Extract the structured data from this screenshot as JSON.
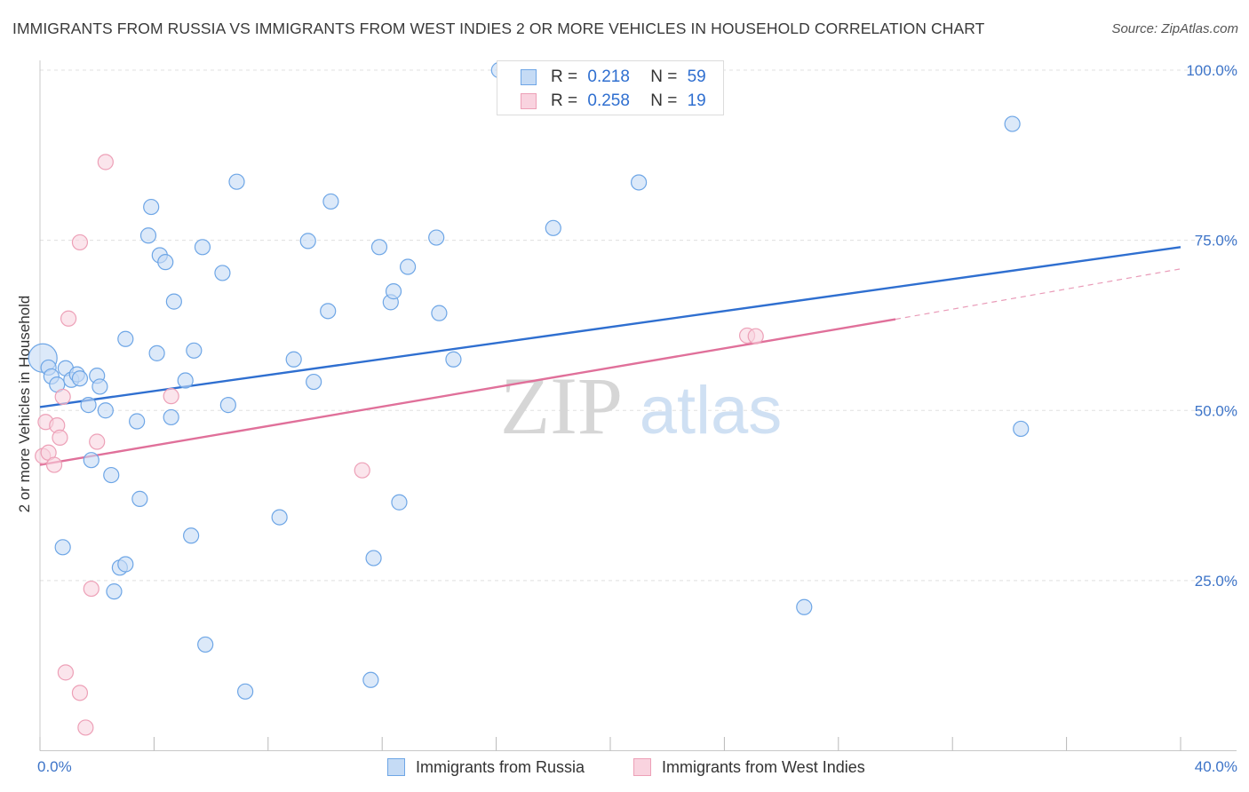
{
  "chart_data": {
    "type": "scatter",
    "title": "IMMIGRANTS FROM RUSSIA VS IMMIGRANTS FROM WEST INDIES 2 OR MORE VEHICLES IN HOUSEHOLD CORRELATION CHART",
    "source": "Source: ZipAtlas.com",
    "xlabel": "",
    "ylabel": "2 or more Vehicles in Household",
    "xlim": [
      0,
      40
    ],
    "ylim": [
      0,
      102
    ],
    "x_tick_labels": [
      "0.0%",
      "40.0%"
    ],
    "y_tick_labels": [
      "100.0%",
      "75.0%",
      "50.0%",
      "25.0%"
    ],
    "y_ticks": [
      100,
      75,
      50,
      25
    ],
    "watermark": {
      "zip": "ZIP",
      "atlas": "atlas"
    },
    "legend": [
      {
        "r_label": "R =",
        "r_value": "0.218",
        "n_label": "N =",
        "n_value": "59"
      },
      {
        "r_label": "R =",
        "r_value": "0.258",
        "n_label": "N =",
        "n_value": "19"
      }
    ],
    "series": [
      {
        "name": "Immigrants from Russia",
        "color": "#6ea6e6",
        "fill": "#c5dbf5",
        "line_color": "#2f6fd0",
        "trend": {
          "x": [
            0,
            40
          ],
          "y": [
            50.5,
            74
          ]
        },
        "points": [
          {
            "x": 0.1,
            "y": 57.7,
            "big": true
          },
          {
            "x": 0.3,
            "y": 56.3
          },
          {
            "x": 0.4,
            "y": 55.0
          },
          {
            "x": 0.6,
            "y": 53.8
          },
          {
            "x": 0.9,
            "y": 56.2
          },
          {
            "x": 1.1,
            "y": 54.5
          },
          {
            "x": 1.3,
            "y": 55.3
          },
          {
            "x": 1.4,
            "y": 54.7
          },
          {
            "x": 1.7,
            "y": 50.8
          },
          {
            "x": 2.0,
            "y": 55.1
          },
          {
            "x": 2.1,
            "y": 53.5
          },
          {
            "x": 2.3,
            "y": 50.0
          },
          {
            "x": 0.8,
            "y": 29.9
          },
          {
            "x": 1.8,
            "y": 42.7
          },
          {
            "x": 2.5,
            "y": 40.5
          },
          {
            "x": 2.6,
            "y": 23.4
          },
          {
            "x": 2.8,
            "y": 26.9
          },
          {
            "x": 3.0,
            "y": 27.4
          },
          {
            "x": 3.0,
            "y": 60.5
          },
          {
            "x": 3.4,
            "y": 48.4
          },
          {
            "x": 3.5,
            "y": 37.0
          },
          {
            "x": 3.8,
            "y": 75.7
          },
          {
            "x": 3.9,
            "y": 79.9
          },
          {
            "x": 4.1,
            "y": 58.4
          },
          {
            "x": 4.2,
            "y": 72.8
          },
          {
            "x": 4.4,
            "y": 71.8
          },
          {
            "x": 4.6,
            "y": 49.0
          },
          {
            "x": 4.7,
            "y": 66.0
          },
          {
            "x": 5.1,
            "y": 54.4
          },
          {
            "x": 5.3,
            "y": 31.6
          },
          {
            "x": 5.4,
            "y": 58.8
          },
          {
            "x": 5.7,
            "y": 74.0
          },
          {
            "x": 5.8,
            "y": 15.6
          },
          {
            "x": 6.4,
            "y": 70.2
          },
          {
            "x": 6.6,
            "y": 50.8
          },
          {
            "x": 6.9,
            "y": 83.6
          },
          {
            "x": 7.2,
            "y": 8.7
          },
          {
            "x": 8.4,
            "y": 34.3
          },
          {
            "x": 8.9,
            "y": 57.5
          },
          {
            "x": 9.4,
            "y": 74.9
          },
          {
            "x": 9.6,
            "y": 54.2
          },
          {
            "x": 10.1,
            "y": 64.6
          },
          {
            "x": 10.2,
            "y": 80.7
          },
          {
            "x": 11.6,
            "y": 10.4
          },
          {
            "x": 11.7,
            "y": 28.3
          },
          {
            "x": 11.9,
            "y": 74.0
          },
          {
            "x": 12.3,
            "y": 65.9
          },
          {
            "x": 12.4,
            "y": 67.5
          },
          {
            "x": 12.6,
            "y": 36.5
          },
          {
            "x": 12.9,
            "y": 71.1
          },
          {
            "x": 13.9,
            "y": 75.4
          },
          {
            "x": 14.0,
            "y": 64.3
          },
          {
            "x": 14.5,
            "y": 57.5
          },
          {
            "x": 16.1,
            "y": 100.0
          },
          {
            "x": 18.0,
            "y": 76.8
          },
          {
            "x": 21.0,
            "y": 83.5
          },
          {
            "x": 26.8,
            "y": 21.1
          },
          {
            "x": 34.1,
            "y": 92.1
          },
          {
            "x": 34.4,
            "y": 47.3
          }
        ]
      },
      {
        "name": "Immigrants from West Indies",
        "color": "#eda0b7",
        "fill": "#f9d3df",
        "line_color": "#e0709a",
        "trend": {
          "x": [
            0,
            30
          ],
          "y": [
            42,
            63.4
          ]
        },
        "trend_dashed": {
          "x": [
            30,
            40
          ],
          "y": [
            63.4,
            70.8
          ]
        },
        "points": [
          {
            "x": 0.1,
            "y": 43.3
          },
          {
            "x": 0.2,
            "y": 48.3
          },
          {
            "x": 0.3,
            "y": 43.8
          },
          {
            "x": 0.5,
            "y": 42.0
          },
          {
            "x": 0.6,
            "y": 47.8
          },
          {
            "x": 0.7,
            "y": 46.0
          },
          {
            "x": 0.8,
            "y": 52.0
          },
          {
            "x": 0.9,
            "y": 11.5
          },
          {
            "x": 1.0,
            "y": 63.5
          },
          {
            "x": 1.4,
            "y": 8.5
          },
          {
            "x": 1.4,
            "y": 74.7
          },
          {
            "x": 1.6,
            "y": 3.4
          },
          {
            "x": 1.8,
            "y": 23.8
          },
          {
            "x": 2.0,
            "y": 45.4
          },
          {
            "x": 2.3,
            "y": 86.5
          },
          {
            "x": 4.6,
            "y": 52.1
          },
          {
            "x": 11.3,
            "y": 41.2
          },
          {
            "x": 24.8,
            "y": 61.0
          },
          {
            "x": 25.1,
            "y": 60.9
          }
        ]
      }
    ]
  }
}
